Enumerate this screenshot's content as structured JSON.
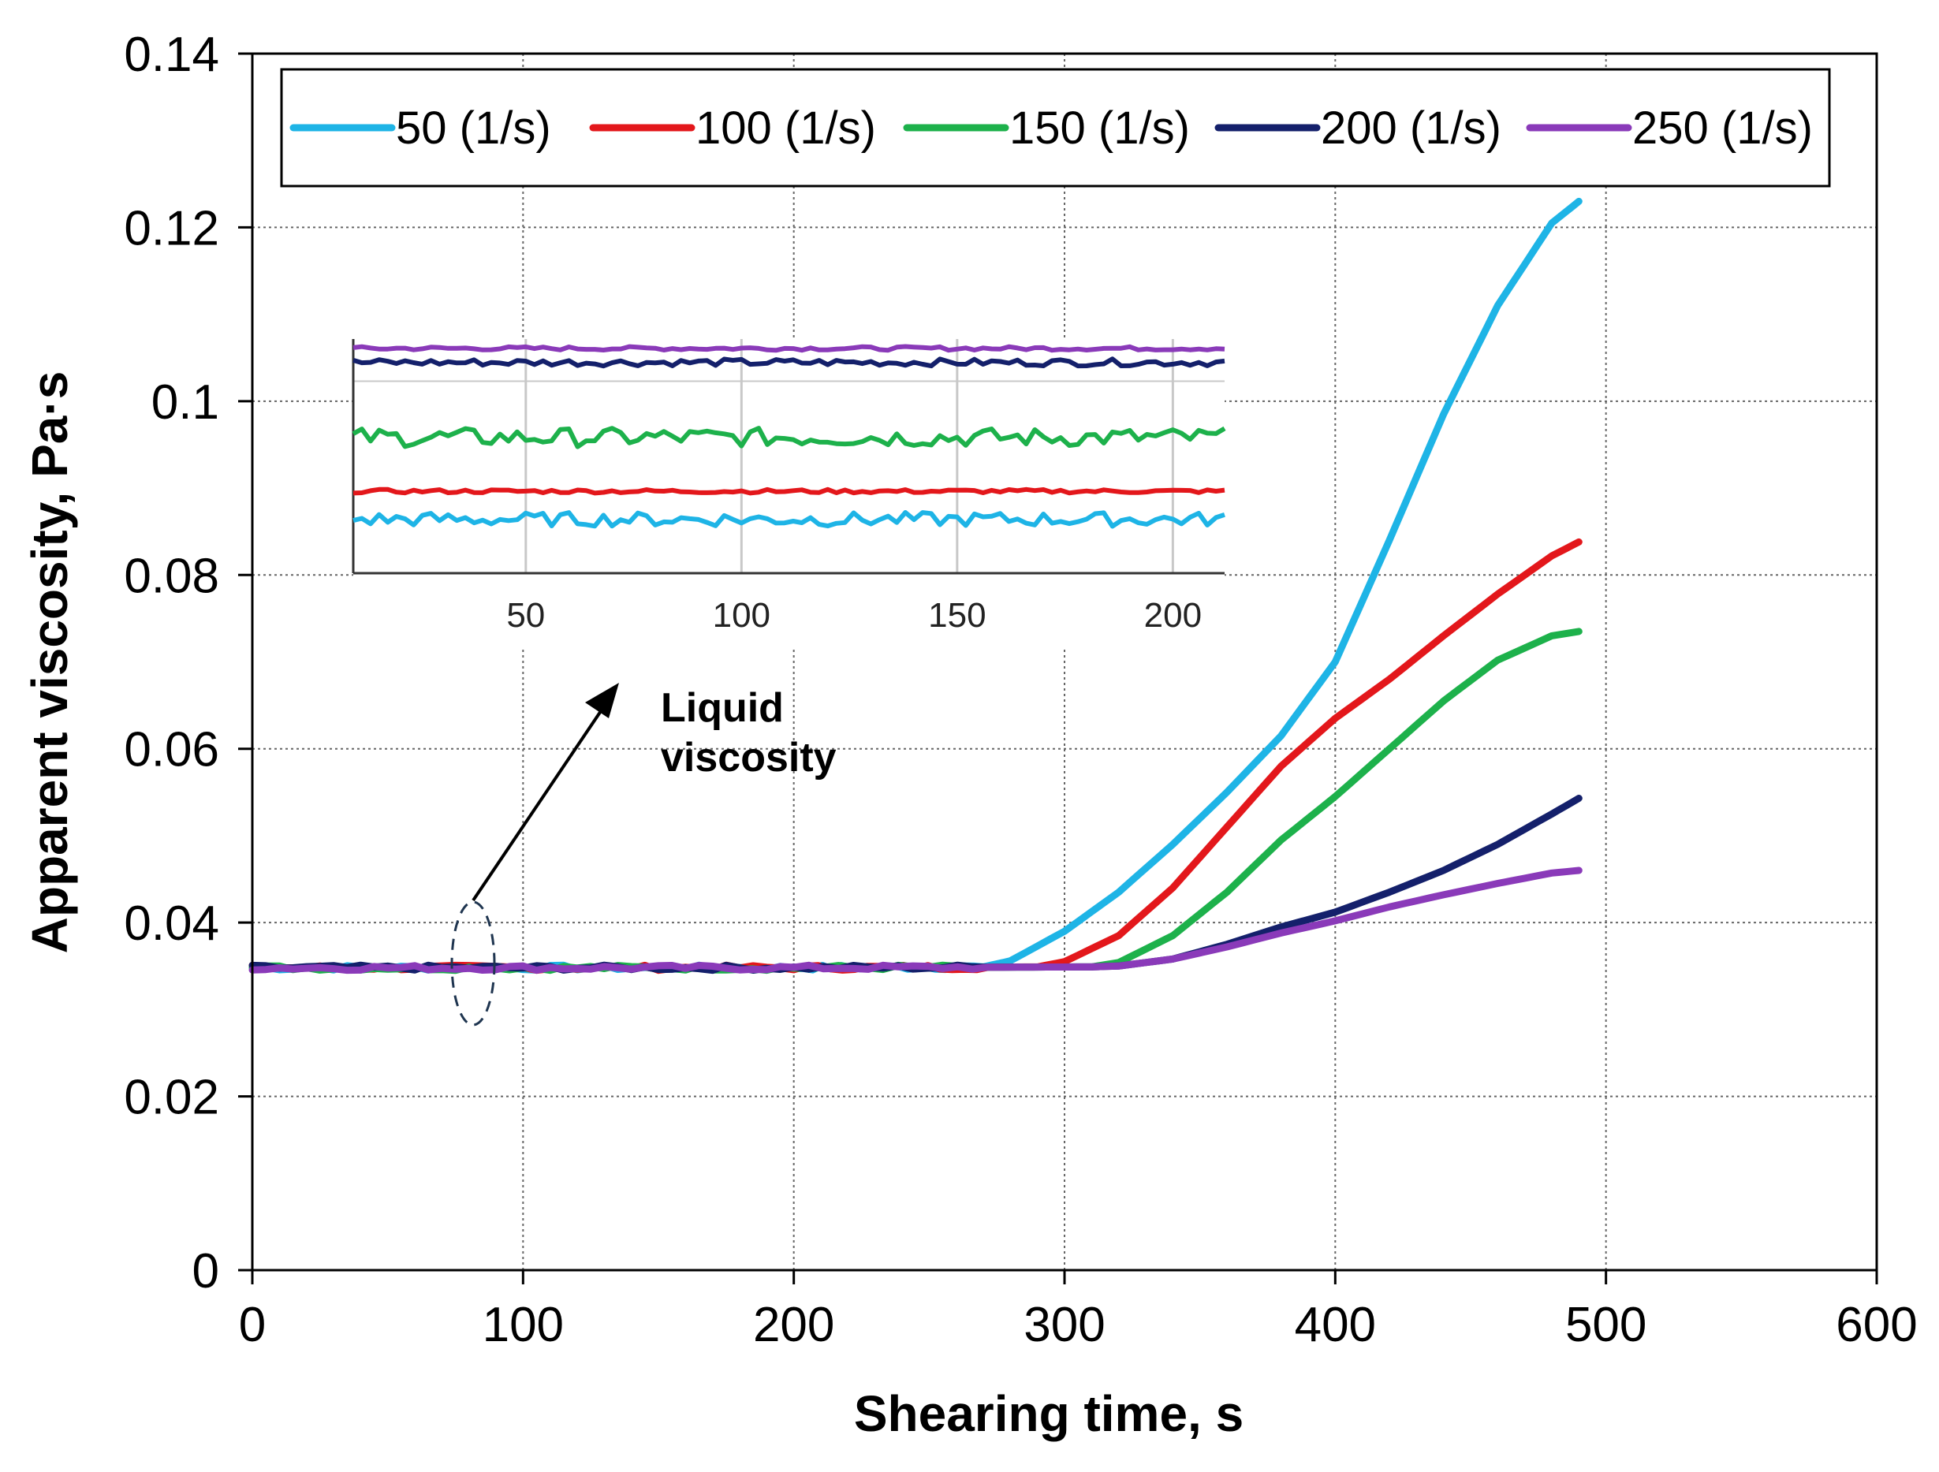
{
  "chart_data": {
    "type": "line",
    "title": "",
    "xlabel": "Shearing time, s",
    "ylabel": "Apparent viscosity, Pa·s",
    "xlim": [
      0,
      600
    ],
    "ylim": [
      0,
      0.14
    ],
    "xticks": [
      0,
      100,
      200,
      300,
      400,
      500,
      600
    ],
    "xtick_labels": [
      "0",
      "100",
      "200",
      "300",
      "400",
      "500",
      "600"
    ],
    "yticks": [
      0,
      0.02,
      0.04,
      0.06,
      0.08,
      0.1,
      0.12,
      0.14
    ],
    "ytick_labels": [
      "0",
      "0.02",
      "0.04",
      "0.06",
      "0.08",
      "0.1",
      "0.12",
      "0.14"
    ],
    "grid": true,
    "legend_position": "top",
    "series": [
      {
        "name": "50  (1/s)",
        "color": "#1EB4E6",
        "x": [
          0,
          100,
          200,
          270,
          280,
          300,
          320,
          340,
          360,
          380,
          400,
          420,
          440,
          460,
          480,
          490
        ],
        "y": [
          0.0348,
          0.0348,
          0.0348,
          0.0349,
          0.0356,
          0.039,
          0.0435,
          0.049,
          0.055,
          0.0615,
          0.07,
          0.084,
          0.0985,
          0.111,
          0.1205,
          0.123
        ]
      },
      {
        "name": "100 (1/s)",
        "color": "#E3171B",
        "x": [
          0,
          100,
          200,
          290,
          300,
          320,
          340,
          360,
          380,
          400,
          420,
          440,
          460,
          480,
          490
        ],
        "y": [
          0.0348,
          0.0348,
          0.0348,
          0.0349,
          0.0355,
          0.0385,
          0.044,
          0.051,
          0.058,
          0.0635,
          0.068,
          0.073,
          0.0778,
          0.0822,
          0.0838
        ]
      },
      {
        "name": "150 (1/s)",
        "color": "#1DB14B",
        "x": [
          0,
          100,
          200,
          310,
          320,
          340,
          360,
          380,
          400,
          420,
          440,
          460,
          480,
          490
        ],
        "y": [
          0.0348,
          0.0348,
          0.0348,
          0.0349,
          0.0354,
          0.0385,
          0.0435,
          0.0495,
          0.0545,
          0.06,
          0.0655,
          0.0702,
          0.073,
          0.0735
        ]
      },
      {
        "name": "200 (1/s)",
        "color": "#14206B",
        "x": [
          0,
          100,
          200,
          310,
          320,
          340,
          360,
          380,
          400,
          420,
          440,
          460,
          480,
          490
        ],
        "y": [
          0.0348,
          0.0348,
          0.0348,
          0.0349,
          0.035,
          0.0358,
          0.0375,
          0.0395,
          0.0412,
          0.0435,
          0.046,
          0.049,
          0.0525,
          0.0543
        ]
      },
      {
        "name": "250 (1/s)",
        "color": "#8A3AB9",
        "x": [
          0,
          100,
          200,
          310,
          320,
          340,
          360,
          380,
          400,
          420,
          440,
          460,
          480,
          490
        ],
        "y": [
          0.0348,
          0.0348,
          0.0348,
          0.0349,
          0.035,
          0.0358,
          0.0372,
          0.0388,
          0.0402,
          0.0418,
          0.0432,
          0.0445,
          0.0457,
          0.046
        ]
      }
    ],
    "inset": {
      "xticks": [
        50,
        100,
        150,
        200
      ],
      "xtick_labels": [
        "50",
        "100",
        "150",
        "200"
      ],
      "xlim": [
        10,
        212
      ],
      "series_levels": [
        {
          "name": "250 (1/s)",
          "color": "#8A3AB9",
          "level": 0.96,
          "noise": 0.008
        },
        {
          "name": "200 (1/s)",
          "color": "#14206B",
          "level": 0.9,
          "noise": 0.015
        },
        {
          "name": "150 (1/s)",
          "color": "#1DB14B",
          "level": 0.58,
          "noise": 0.04
        },
        {
          "name": "100 (1/s)",
          "color": "#E3171B",
          "level": 0.35,
          "noise": 0.008
        },
        {
          "name": "50  (1/s)",
          "color": "#1EB4E6",
          "level": 0.23,
          "noise": 0.03
        }
      ]
    },
    "annotation": {
      "line1": "Liquid",
      "line2": "viscosity"
    }
  }
}
